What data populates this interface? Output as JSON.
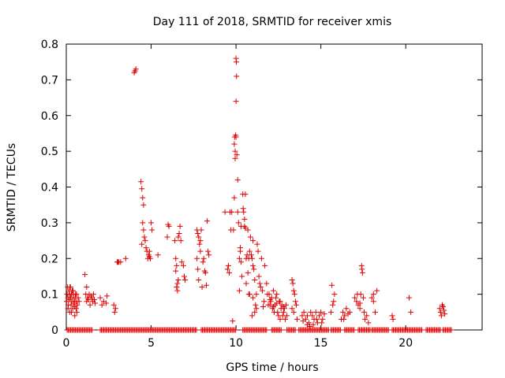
{
  "chart_data": {
    "type": "scatter",
    "title": "Day 111 of 2018, SRMTID for receiver xmis",
    "xlabel": "GPS time / hours",
    "ylabel": "SRMTID / TECUs",
    "xlim": [
      0,
      24.5
    ],
    "ylim": [
      0,
      0.8
    ],
    "x_ticks": [
      0,
      5,
      10,
      15,
      20
    ],
    "y_ticks": [
      0,
      0.1,
      0.2,
      0.3,
      0.4,
      0.5,
      0.6,
      0.7,
      0.8
    ],
    "x_tick_labels": [
      "0",
      "5",
      "10",
      "15",
      "20"
    ],
    "y_tick_labels": [
      "0",
      "0.1",
      "0.2",
      "0.3",
      "0.4",
      "0.5",
      "0.6",
      "0.7",
      "0.8"
    ],
    "grid": false,
    "marker": "+",
    "marker_color": "#e00000",
    "series": [
      {
        "name": "SRMTID",
        "points": [
          [
            0.02,
            0.08
          ],
          [
            0.05,
            0.1
          ],
          [
            0.08,
            0.12
          ],
          [
            0.1,
            0.09
          ],
          [
            0.12,
            0.07
          ],
          [
            0.15,
            0.11
          ],
          [
            0.18,
            0.085
          ],
          [
            0.2,
            0.1
          ],
          [
            0.22,
            0.12
          ],
          [
            0.25,
            0.09
          ],
          [
            0.28,
            0.07
          ],
          [
            0.3,
            0.1
          ],
          [
            0.32,
            0.08
          ],
          [
            0.35,
            0.11
          ],
          [
            0.38,
            0.06
          ],
          [
            0.4,
            0.09
          ],
          [
            0.42,
            0.1
          ],
          [
            0.45,
            0.075
          ],
          [
            0.48,
            0.08
          ],
          [
            0.5,
            0.065
          ],
          [
            0.52,
            0.09
          ],
          [
            0.55,
            0.1
          ],
          [
            0.58,
            0.06
          ],
          [
            0.6,
            0.08
          ],
          [
            0.62,
            0.05
          ],
          [
            0.65,
            0.07
          ],
          [
            0.7,
            0.09
          ],
          [
            0.75,
            0.08
          ],
          [
            0.1,
            0.06
          ],
          [
            0.3,
            0.05
          ],
          [
            0.5,
            0.04
          ],
          [
            0.2,
            0.05
          ],
          [
            0.4,
            0.11
          ],
          [
            0.6,
            0.1
          ],
          [
            0.25,
            0.12
          ],
          [
            1.1,
            0.155
          ],
          [
            1.15,
            0.1
          ],
          [
            1.2,
            0.12
          ],
          [
            1.25,
            0.09
          ],
          [
            1.3,
            0.085
          ],
          [
            1.35,
            0.1
          ],
          [
            1.4,
            0.07
          ],
          [
            1.45,
            0.095
          ],
          [
            1.5,
            0.09
          ],
          [
            1.55,
            0.08
          ],
          [
            1.6,
            0.1
          ],
          [
            1.65,
            0.085
          ],
          [
            1.7,
            0.075
          ],
          [
            1.2,
            0.08
          ],
          [
            2.0,
            0.09
          ],
          [
            2.1,
            0.07
          ],
          [
            2.2,
            0.08
          ],
          [
            2.35,
            0.075
          ],
          [
            2.4,
            0.095
          ],
          [
            2.8,
            0.07
          ],
          [
            2.85,
            0.05
          ],
          [
            2.9,
            0.06
          ],
          [
            3.0,
            0.19
          ],
          [
            3.05,
            0.19
          ],
          [
            3.1,
            0.19
          ],
          [
            3.5,
            0.2
          ],
          [
            3.2,
            0.19
          ],
          [
            4.0,
            0.72
          ],
          [
            4.05,
            0.725
          ],
          [
            4.1,
            0.73
          ],
          [
            4.4,
            0.415
          ],
          [
            4.45,
            0.395
          ],
          [
            4.5,
            0.37
          ],
          [
            4.55,
            0.35
          ],
          [
            4.5,
            0.3
          ],
          [
            4.55,
            0.28
          ],
          [
            4.6,
            0.26
          ],
          [
            4.65,
            0.25
          ],
          [
            4.7,
            0.23
          ],
          [
            4.45,
            0.24
          ],
          [
            4.8,
            0.2
          ],
          [
            4.85,
            0.21
          ],
          [
            4.9,
            0.22
          ],
          [
            4.95,
            0.2
          ],
          [
            5.0,
            0.3
          ],
          [
            5.05,
            0.28
          ],
          [
            4.75,
            0.22
          ],
          [
            4.9,
            0.205
          ],
          [
            5.4,
            0.21
          ],
          [
            5.95,
            0.26
          ],
          [
            6.0,
            0.295
          ],
          [
            6.05,
            0.29
          ],
          [
            6.4,
            0.25
          ],
          [
            6.45,
            0.2
          ],
          [
            6.5,
            0.18
          ],
          [
            6.5,
            0.12
          ],
          [
            6.55,
            0.13
          ],
          [
            6.6,
            0.14
          ],
          [
            6.6,
            0.26
          ],
          [
            6.65,
            0.27
          ],
          [
            6.7,
            0.29
          ],
          [
            6.75,
            0.25
          ],
          [
            6.8,
            0.19
          ],
          [
            6.9,
            0.18
          ],
          [
            6.95,
            0.15
          ],
          [
            7.0,
            0.14
          ],
          [
            6.55,
            0.11
          ],
          [
            6.45,
            0.165
          ],
          [
            7.7,
            0.28
          ],
          [
            7.75,
            0.27
          ],
          [
            7.8,
            0.26
          ],
          [
            7.85,
            0.24
          ],
          [
            7.9,
            0.22
          ],
          [
            7.7,
            0.2
          ],
          [
            7.75,
            0.17
          ],
          [
            7.8,
            0.14
          ],
          [
            7.9,
            0.25
          ],
          [
            7.95,
            0.28
          ],
          [
            8.0,
            0.12
          ],
          [
            8.05,
            0.19
          ],
          [
            8.1,
            0.2
          ],
          [
            8.15,
            0.165
          ],
          [
            8.2,
            0.16
          ],
          [
            8.25,
            0.125
          ],
          [
            8.3,
            0.305
          ],
          [
            8.35,
            0.22
          ],
          [
            8.4,
            0.21
          ],
          [
            9.35,
            0.33
          ],
          [
            9.5,
            0.17
          ],
          [
            9.55,
            0.18
          ],
          [
            9.6,
            0.16
          ],
          [
            9.65,
            0.33
          ],
          [
            9.7,
            0.28
          ],
          [
            9.75,
            0.33
          ],
          [
            9.8,
            0.025
          ],
          [
            9.85,
            0.28
          ],
          [
            9.9,
            0.37
          ],
          [
            9.9,
            0.52
          ],
          [
            9.92,
            0.54
          ],
          [
            9.95,
            0.5
          ],
          [
            9.95,
            0.48
          ],
          [
            9.98,
            0.545
          ],
          [
            10.0,
            0.54
          ],
          [
            10.0,
            0.76
          ],
          [
            10.02,
            0.75
          ],
          [
            10.03,
            0.71
          ],
          [
            10.0,
            0.64
          ],
          [
            10.05,
            0.49
          ],
          [
            10.1,
            0.42
          ],
          [
            10.1,
            0.33
          ],
          [
            10.15,
            0.3
          ],
          [
            10.2,
            0.2
          ],
          [
            10.2,
            0.11
          ],
          [
            10.25,
            0.23
          ],
          [
            10.25,
            0.22
          ],
          [
            10.3,
            0.19
          ],
          [
            10.35,
            0.15
          ],
          [
            10.4,
            0.38
          ],
          [
            10.42,
            0.34
          ],
          [
            10.45,
            0.33
          ],
          [
            10.5,
            0.31
          ],
          [
            10.5,
            0.29
          ],
          [
            10.55,
            0.285
          ],
          [
            10.55,
            0.38
          ],
          [
            10.6,
            0.2
          ],
          [
            10.6,
            0.13
          ],
          [
            10.65,
            0.21
          ],
          [
            10.7,
            0.16
          ],
          [
            10.75,
            0.2
          ],
          [
            10.75,
            0.1
          ],
          [
            10.8,
            0.22
          ],
          [
            10.8,
            0.1
          ],
          [
            10.85,
            0.26
          ],
          [
            10.9,
            0.21
          ],
          [
            10.95,
            0.2
          ],
          [
            11.0,
            0.18
          ],
          [
            11.0,
            0.09
          ],
          [
            11.05,
            0.17
          ],
          [
            11.1,
            0.14
          ],
          [
            11.15,
            0.07
          ],
          [
            11.2,
            0.1
          ],
          [
            11.25,
            0.24
          ],
          [
            11.3,
            0.22
          ],
          [
            11.35,
            0.15
          ],
          [
            11.4,
            0.13
          ],
          [
            11.45,
            0.12
          ],
          [
            11.5,
            0.2
          ],
          [
            11.55,
            0.11
          ],
          [
            11.6,
            0.065
          ],
          [
            11.65,
            0.08
          ],
          [
            11.7,
            0.18
          ],
          [
            10.3,
            0.29
          ],
          [
            10.7,
            0.28
          ],
          [
            11.0,
            0.25
          ],
          [
            11.1,
            0.05
          ],
          [
            10.95,
            0.04
          ],
          [
            11.2,
            0.06
          ],
          [
            11.8,
            0.13
          ],
          [
            11.85,
            0.1
          ],
          [
            11.9,
            0.07
          ],
          [
            11.95,
            0.1
          ],
          [
            12.0,
            0.085
          ],
          [
            12.05,
            0.08
          ],
          [
            12.1,
            0.09
          ],
          [
            12.15,
            0.06
          ],
          [
            12.2,
            0.11
          ],
          [
            12.25,
            0.05
          ],
          [
            12.3,
            0.07
          ],
          [
            12.35,
            0.09
          ],
          [
            12.4,
            0.1
          ],
          [
            12.45,
            0.05
          ],
          [
            12.5,
            0.04
          ],
          [
            12.55,
            0.08
          ],
          [
            12.6,
            0.03
          ],
          [
            12.65,
            0.06
          ],
          [
            12.7,
            0.07
          ],
          [
            12.75,
            0.04
          ],
          [
            12.8,
            0.05
          ],
          [
            12.85,
            0.06
          ],
          [
            12.9,
            0.03
          ],
          [
            12.95,
            0.07
          ],
          [
            13.0,
            0.04
          ],
          [
            12.0,
            0.07
          ],
          [
            12.2,
            0.065
          ],
          [
            12.4,
            0.075
          ],
          [
            12.6,
            0.08
          ],
          [
            12.8,
            0.065
          ],
          [
            13.3,
            0.14
          ],
          [
            13.35,
            0.13
          ],
          [
            13.4,
            0.11
          ],
          [
            13.45,
            0.1
          ],
          [
            13.5,
            0.08
          ],
          [
            13.55,
            0.07
          ],
          [
            13.3,
            0.06
          ],
          [
            13.4,
            0.05
          ],
          [
            13.6,
            0.03
          ],
          [
            13.9,
            0.04
          ],
          [
            14.0,
            0.05
          ],
          [
            14.1,
            0.03
          ],
          [
            14.2,
            0.04
          ],
          [
            14.3,
            0.02
          ],
          [
            14.4,
            0.05
          ],
          [
            14.5,
            0.04
          ],
          [
            14.6,
            0.03
          ],
          [
            14.7,
            0.05
          ],
          [
            14.8,
            0.02
          ],
          [
            14.9,
            0.04
          ],
          [
            15.0,
            0.05
          ],
          [
            15.1,
            0.03
          ],
          [
            15.2,
            0.045
          ],
          [
            14.35,
            0.01
          ],
          [
            14.55,
            0.015
          ],
          [
            14.75,
            0.03
          ],
          [
            15.05,
            0.02
          ],
          [
            13.95,
            0.025
          ],
          [
            14.2,
            0.015
          ],
          [
            15.6,
            0.05
          ],
          [
            15.7,
            0.07
          ],
          [
            15.75,
            0.08
          ],
          [
            15.65,
            0.125
          ],
          [
            15.8,
            0.1
          ],
          [
            16.2,
            0.03
          ],
          [
            16.3,
            0.05
          ],
          [
            16.4,
            0.04
          ],
          [
            16.5,
            0.06
          ],
          [
            16.6,
            0.045
          ],
          [
            16.7,
            0.05
          ],
          [
            16.35,
            0.03
          ],
          [
            17.0,
            0.09
          ],
          [
            17.1,
            0.08
          ],
          [
            17.2,
            0.07
          ],
          [
            17.3,
            0.06
          ],
          [
            17.35,
            0.1
          ],
          [
            17.4,
            0.18
          ],
          [
            17.42,
            0.17
          ],
          [
            17.45,
            0.16
          ],
          [
            17.5,
            0.09
          ],
          [
            17.55,
            0.05
          ],
          [
            17.6,
            0.03
          ],
          [
            17.7,
            0.04
          ],
          [
            17.8,
            0.02
          ],
          [
            17.3,
            0.075
          ],
          [
            17.15,
            0.1
          ],
          [
            18.0,
            0.09
          ],
          [
            18.1,
            0.08
          ],
          [
            18.2,
            0.05
          ],
          [
            18.3,
            0.11
          ],
          [
            18.1,
            0.1
          ],
          [
            19.2,
            0.04
          ],
          [
            19.25,
            0.03
          ],
          [
            20.2,
            0.09
          ],
          [
            20.3,
            0.05
          ],
          [
            22.0,
            0.06
          ],
          [
            22.05,
            0.05
          ],
          [
            22.1,
            0.04
          ],
          [
            22.15,
            0.07
          ],
          [
            22.2,
            0.065
          ],
          [
            22.25,
            0.055
          ],
          [
            22.3,
            0.045
          ]
        ],
        "zero_points": [
          [
            0.05,
            1.55
          ],
          [
            2.0,
            7.7
          ],
          [
            7.95,
            10.0
          ],
          [
            10.4,
            11.85
          ],
          [
            12.1,
            12.7
          ],
          [
            13.0,
            13.5
          ],
          [
            13.7,
            15.5
          ],
          [
            15.6,
            16.2
          ],
          [
            16.4,
            17.0
          ],
          [
            17.2,
            17.9
          ],
          [
            18.0,
            19.0
          ],
          [
            19.2,
            21.0
          ],
          [
            21.2,
            22.1
          ],
          [
            22.2,
            22.75
          ]
        ]
      }
    ]
  }
}
